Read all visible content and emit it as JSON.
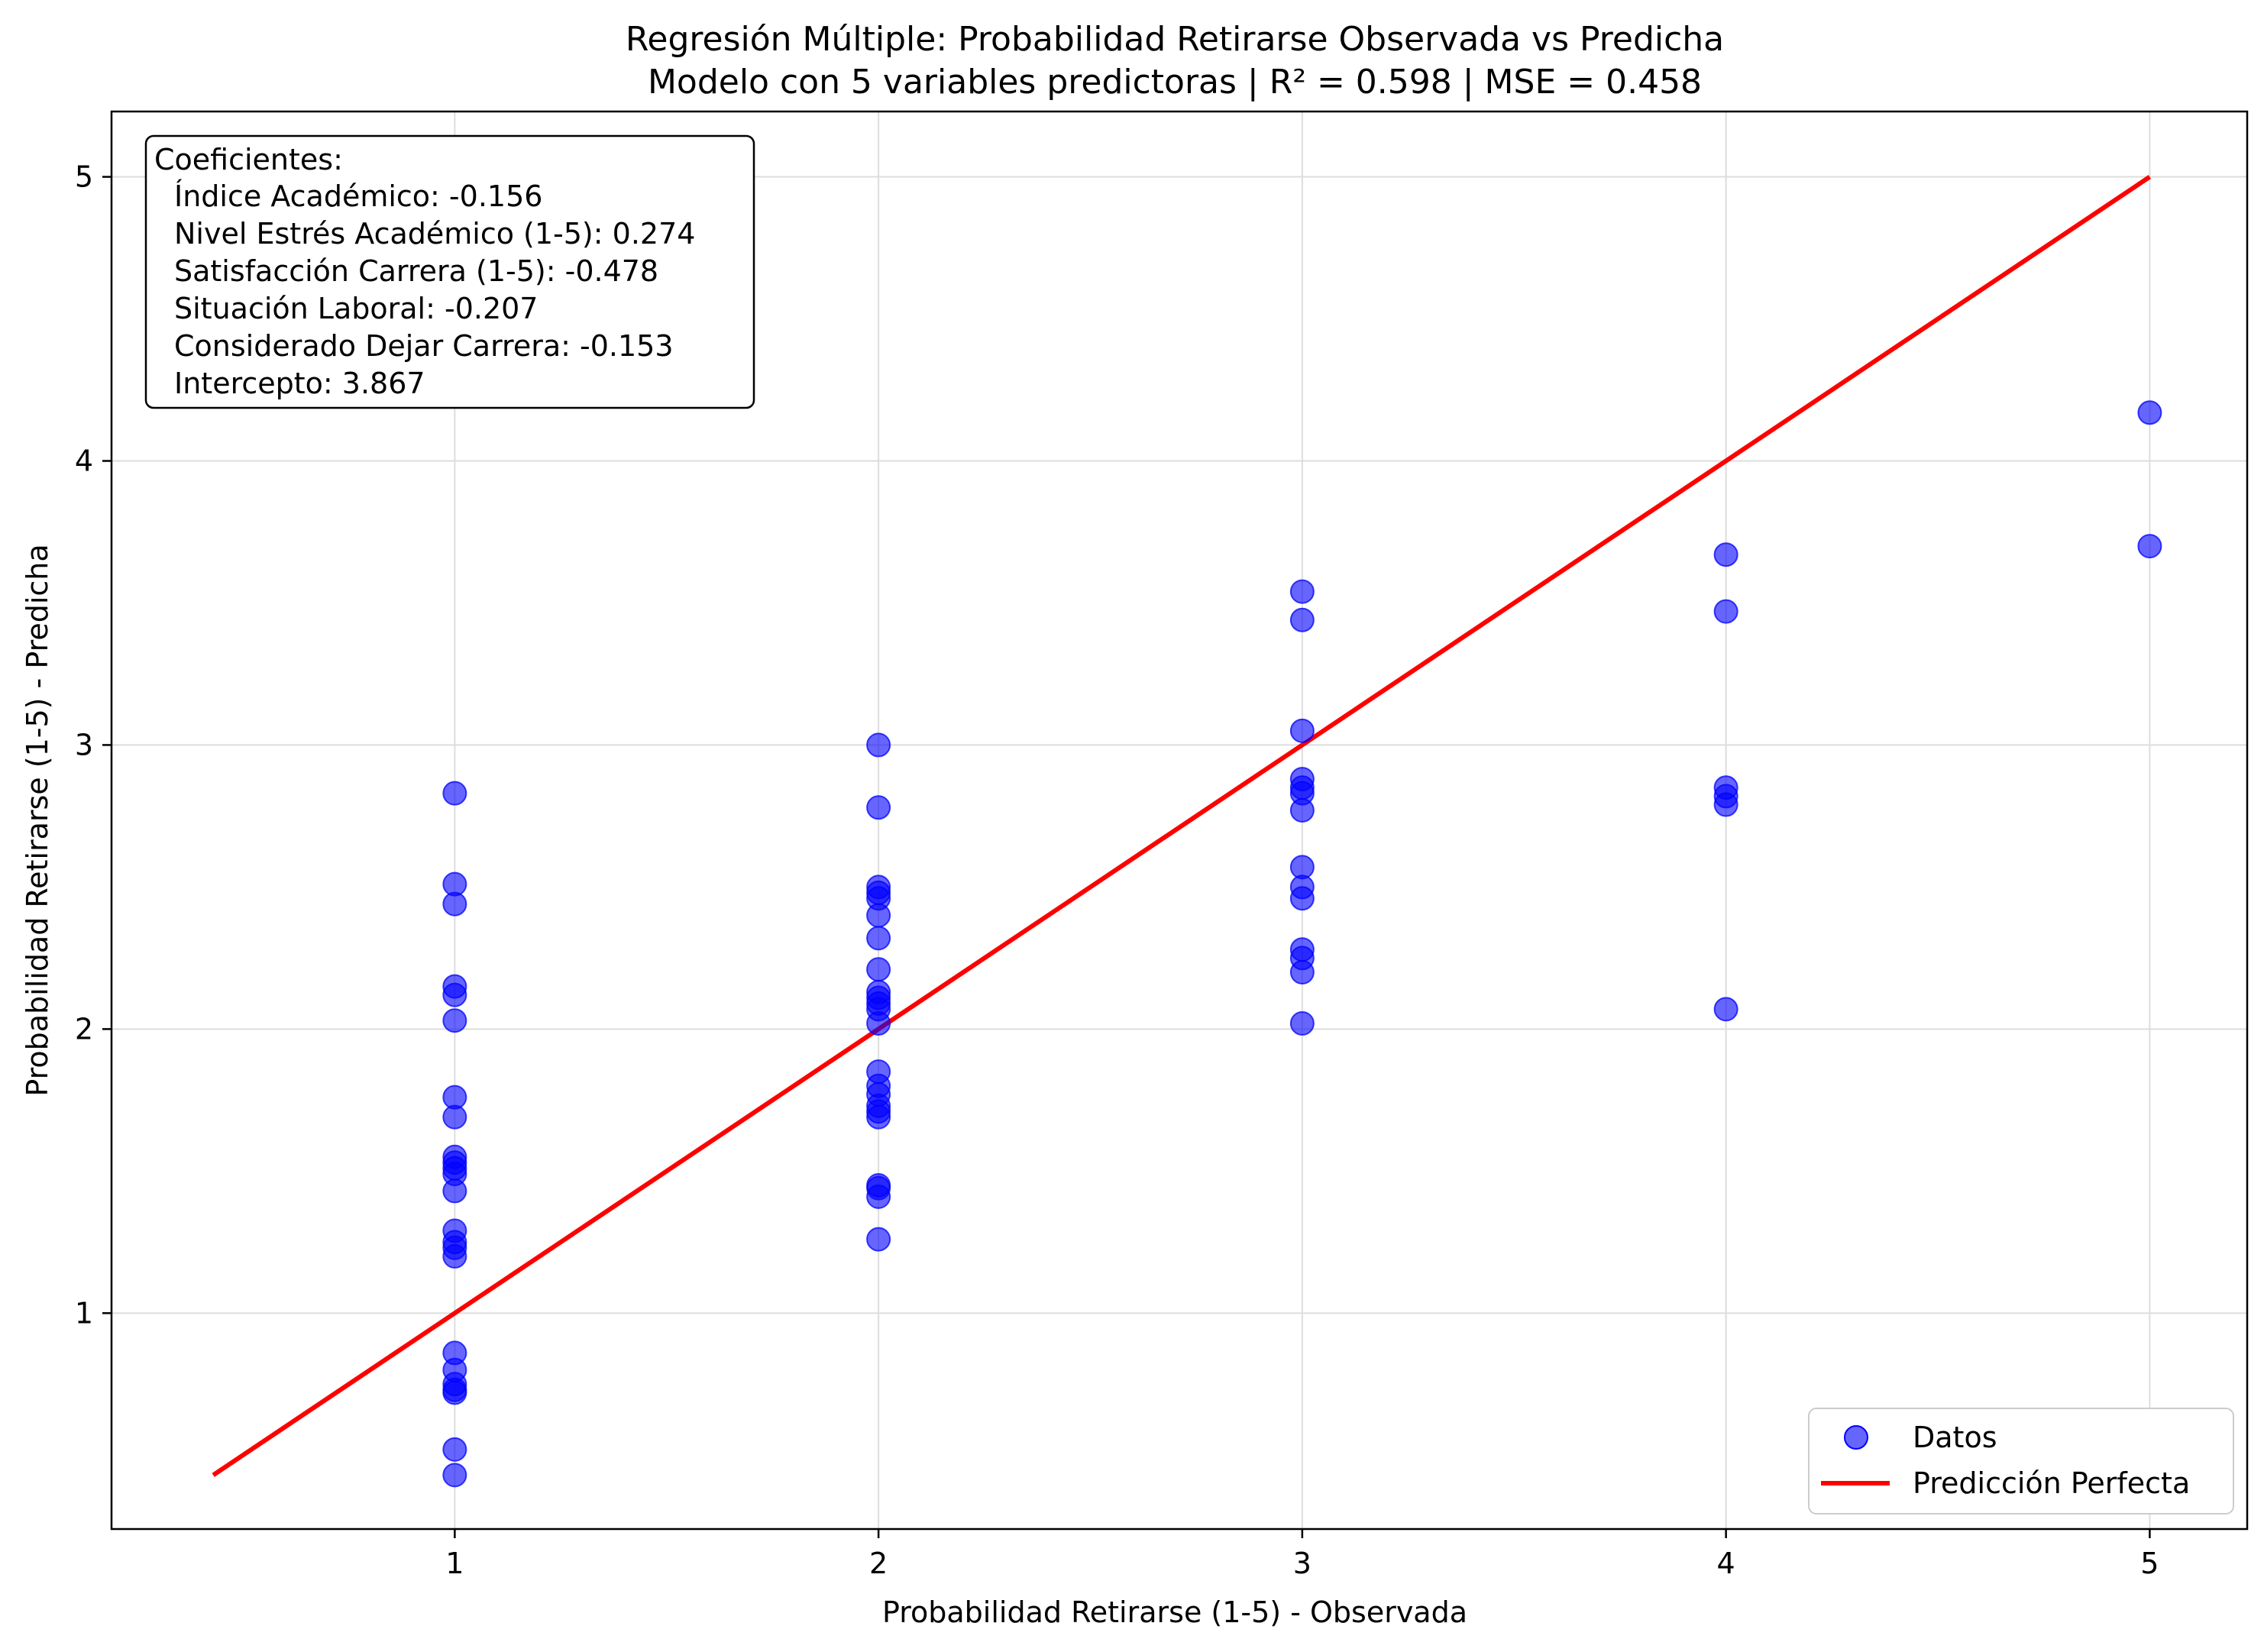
{
  "chart_data": {
    "type": "scatter",
    "title": "Regresión Múltiple: Probabilidad Retirarse Observada vs Predicha",
    "subtitle": "Modelo con 5 variables predictoras | R² = 0.598 | MSE = 0.458",
    "xlabel": "Probabilidad Retirarse (1-5) - Observada",
    "ylabel": "Probabilidad Retirarse (1-5) - Predicha",
    "xlim": [
      0.19,
      5.23
    ],
    "ylim": [
      0.24,
      5.23
    ],
    "xticks": [
      1,
      2,
      3,
      4,
      5
    ],
    "yticks": [
      1,
      2,
      3,
      4,
      5
    ],
    "xtick_labels": [
      "1",
      "2",
      "3",
      "4",
      "5"
    ],
    "ytick_labels": [
      "1",
      "2",
      "3",
      "4",
      "5"
    ],
    "grid": true,
    "legend_position": "bottom-right",
    "colors": {
      "points": "#0000ff",
      "line": "#ff0000",
      "grid": "#dddddd",
      "axes": "#000000"
    },
    "series": [
      {
        "name": "Datos",
        "kind": "scatter",
        "points": [
          [
            1,
            2.83
          ],
          [
            1,
            2.51
          ],
          [
            1,
            2.44
          ],
          [
            1,
            2.15
          ],
          [
            1,
            2.12
          ],
          [
            1,
            2.03
          ],
          [
            1,
            1.76
          ],
          [
            1,
            1.69
          ],
          [
            1,
            1.55
          ],
          [
            1,
            1.53
          ],
          [
            1,
            1.51
          ],
          [
            1,
            1.49
          ],
          [
            1,
            1.43
          ],
          [
            1,
            1.29
          ],
          [
            1,
            1.25
          ],
          [
            1,
            1.23
          ],
          [
            1,
            1.2
          ],
          [
            1,
            0.86
          ],
          [
            1,
            0.8
          ],
          [
            1,
            0.75
          ],
          [
            1,
            0.73
          ],
          [
            1,
            0.72
          ],
          [
            1,
            0.52
          ],
          [
            1,
            0.43
          ],
          [
            2,
            3.0
          ],
          [
            2,
            2.78
          ],
          [
            2,
            2.5
          ],
          [
            2,
            2.48
          ],
          [
            2,
            2.46
          ],
          [
            2,
            2.4
          ],
          [
            2,
            2.32
          ],
          [
            2,
            2.21
          ],
          [
            2,
            2.13
          ],
          [
            2,
            2.11
          ],
          [
            2,
            2.09
          ],
          [
            2,
            2.07
          ],
          [
            2,
            2.02
          ],
          [
            2,
            1.85
          ],
          [
            2,
            1.8
          ],
          [
            2,
            1.77
          ],
          [
            2,
            1.73
          ],
          [
            2,
            1.71
          ],
          [
            2,
            1.69
          ],
          [
            2,
            1.45
          ],
          [
            2,
            1.44
          ],
          [
            2,
            1.41
          ],
          [
            2,
            1.26
          ],
          [
            3,
            3.54
          ],
          [
            3,
            3.44
          ],
          [
            3,
            3.05
          ],
          [
            3,
            2.88
          ],
          [
            3,
            2.85
          ],
          [
            3,
            2.83
          ],
          [
            3,
            2.77
          ],
          [
            3,
            2.57
          ],
          [
            3,
            2.5
          ],
          [
            3,
            2.46
          ],
          [
            3,
            2.28
          ],
          [
            3,
            2.25
          ],
          [
            3,
            2.2
          ],
          [
            3,
            2.02
          ],
          [
            4,
            3.67
          ],
          [
            4,
            3.47
          ],
          [
            4,
            2.85
          ],
          [
            4,
            2.82
          ],
          [
            4,
            2.79
          ],
          [
            4,
            2.07
          ],
          [
            5,
            4.17
          ],
          [
            5,
            3.7
          ]
        ]
      },
      {
        "name": "Predicción Perfecta",
        "kind": "line",
        "points": [
          [
            0.43,
            0.43
          ],
          [
            5,
            5
          ]
        ]
      }
    ],
    "annotation": {
      "title": "Coeficientes:",
      "lines": [
        "Índice Académico: -0.156",
        "Nivel Estrés Académico (1-5): 0.274",
        "Satisfacción Carrera (1-5): -0.478",
        "Situación Laboral: -0.207",
        "Considerado Dejar Carrera: -0.153",
        "Intercepto: 3.867"
      ]
    }
  }
}
